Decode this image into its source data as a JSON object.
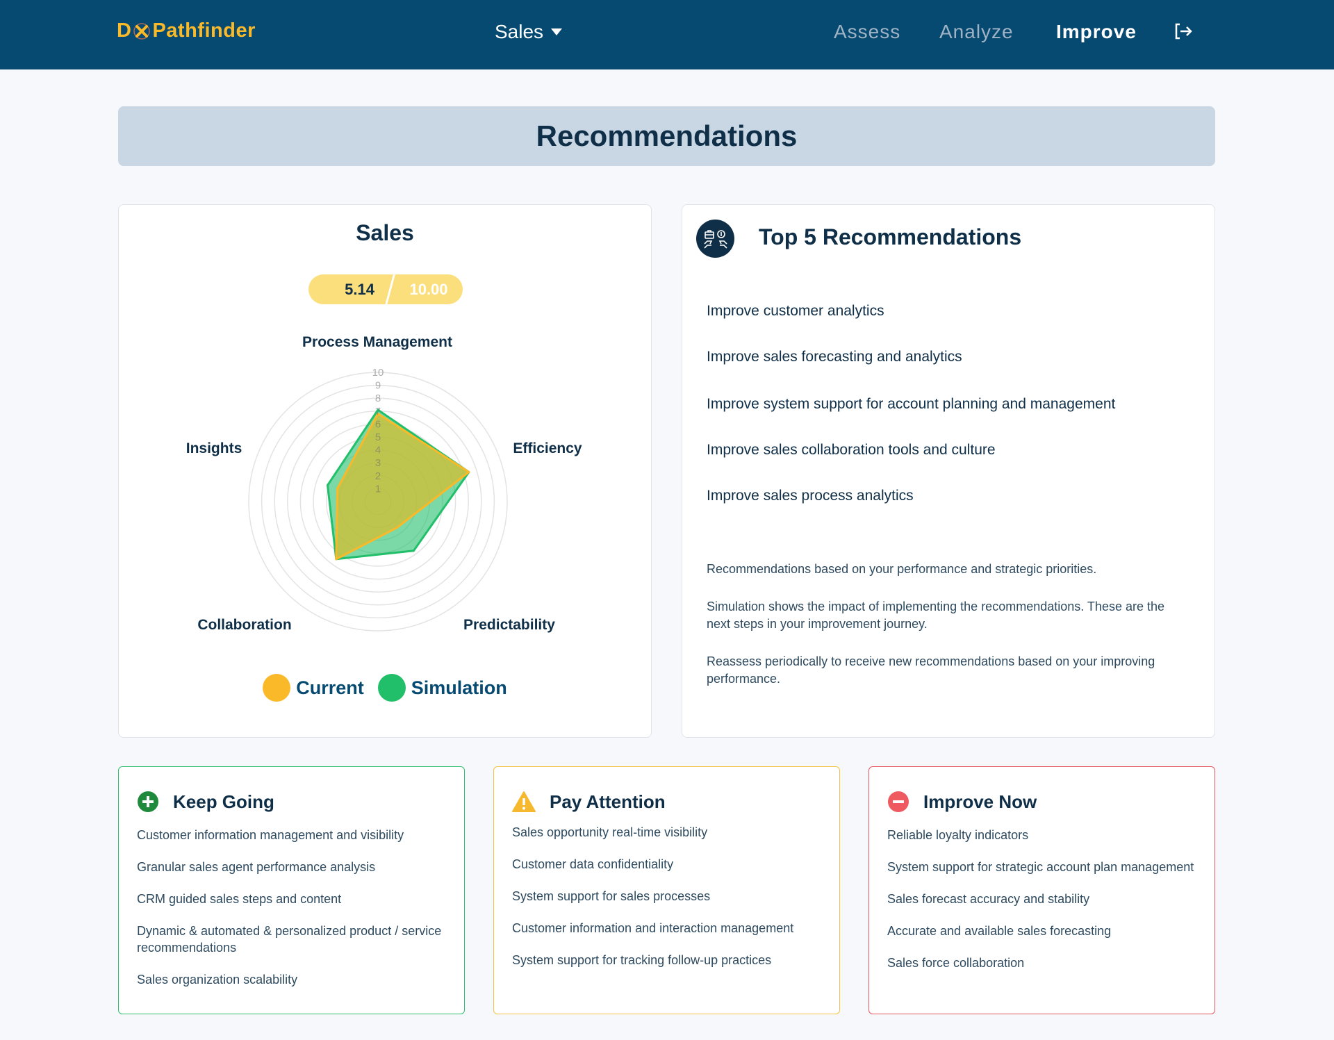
{
  "header": {
    "logo": "DXPathfinder",
    "dropdown_label": "Sales",
    "nav": [
      "Assess",
      "Analyze",
      "Improve"
    ],
    "active_nav": "Improve",
    "logout_icon": "logout-icon"
  },
  "page_title": "Recommendations",
  "sales_card": {
    "title": "Sales",
    "score": "5.14",
    "max_score": "10.00",
    "legend": [
      "Current",
      "Simulation"
    ]
  },
  "chart_data": {
    "type": "radar",
    "axes": [
      "Process Management",
      "Efficiency",
      "Predictability",
      "Collaboration",
      "Insights"
    ],
    "range": [
      0,
      10
    ],
    "ticks": [
      "1",
      "2",
      "3",
      "4",
      "5",
      "6",
      "7",
      "8",
      "9",
      "10"
    ],
    "grid": true,
    "legend_position": "bottom",
    "series": [
      {
        "name": "Current",
        "color": "#f9b929",
        "values": [
          6.8,
          7.4,
          2.5,
          5.5,
          3.3
        ]
      },
      {
        "name": "Simulation",
        "color": "#22bf6a",
        "values": [
          7.1,
          7.4,
          4.7,
          5.5,
          4.1
        ]
      }
    ]
  },
  "top5": {
    "title": "Top 5 Recommendations",
    "items": [
      "Improve customer analytics",
      "Improve sales forecasting and analytics",
      "Improve system support for account planning and management",
      "Improve sales collaboration tools and culture",
      "Improve sales process analytics"
    ],
    "notes": [
      "Recommendations based on your performance and strategic priorities.",
      "Simulation shows the impact of implementing the recommendations. These are the next steps in your improvement journey.",
      "Reassess periodically to receive new recommendations based on your improving performance."
    ]
  },
  "keep_going": {
    "title": "Keep Going",
    "color": "#2dbf6e",
    "items": [
      "Customer information management and visibility",
      "Granular sales agent performance analysis",
      "CRM guided sales steps and content",
      "Dynamic & automated & personalized product / service recommendations",
      "Sales organization scalability"
    ]
  },
  "pay_attention": {
    "title": "Pay Attention",
    "color": "#f5c242",
    "items": [
      "Sales opportunity real-time visibility",
      "Customer data confidentiality",
      "System support for sales processes",
      "Customer information and interaction management",
      "System support for tracking follow-up practices"
    ]
  },
  "improve_now": {
    "title": "Improve Now",
    "color": "#e8565d",
    "items": [
      "Reliable loyalty indicators",
      "System support for strategic account plan management",
      "Sales forecast accuracy and stability",
      "Accurate and available sales forecasting",
      "Sales force collaboration"
    ]
  }
}
